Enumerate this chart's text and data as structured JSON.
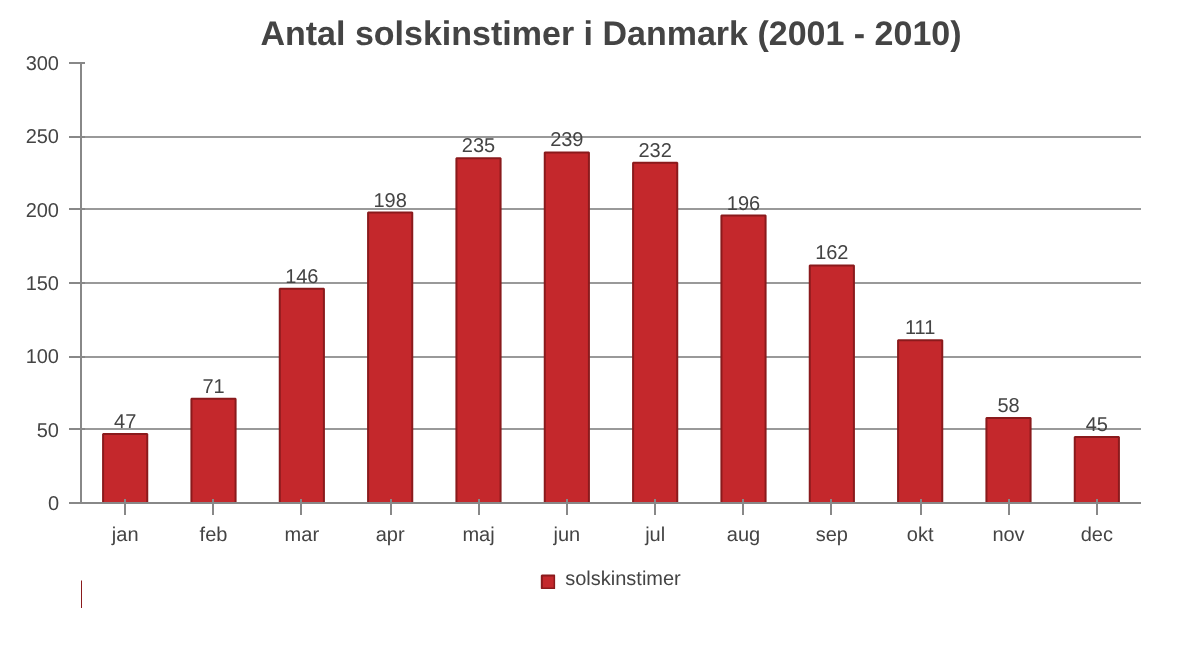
{
  "chart_data": {
    "type": "bar",
    "title": "Antal solskinstimer i Danmark (2001 - 2010)",
    "categories": [
      "jan",
      "feb",
      "mar",
      "apr",
      "maj",
      "jun",
      "jul",
      "aug",
      "sep",
      "okt",
      "nov",
      "dec"
    ],
    "series": [
      {
        "name": "solskinstimer",
        "color": "#c4282c",
        "values": [
          47,
          71,
          146,
          198,
          235,
          239,
          232,
          196,
          162,
          111,
          58,
          45
        ]
      }
    ],
    "ylim": [
      0,
      300
    ],
    "yticks": [
      0,
      50,
      100,
      150,
      200,
      250,
      300
    ],
    "grid": "y",
    "data_labels": true,
    "legend": "bottom"
  }
}
